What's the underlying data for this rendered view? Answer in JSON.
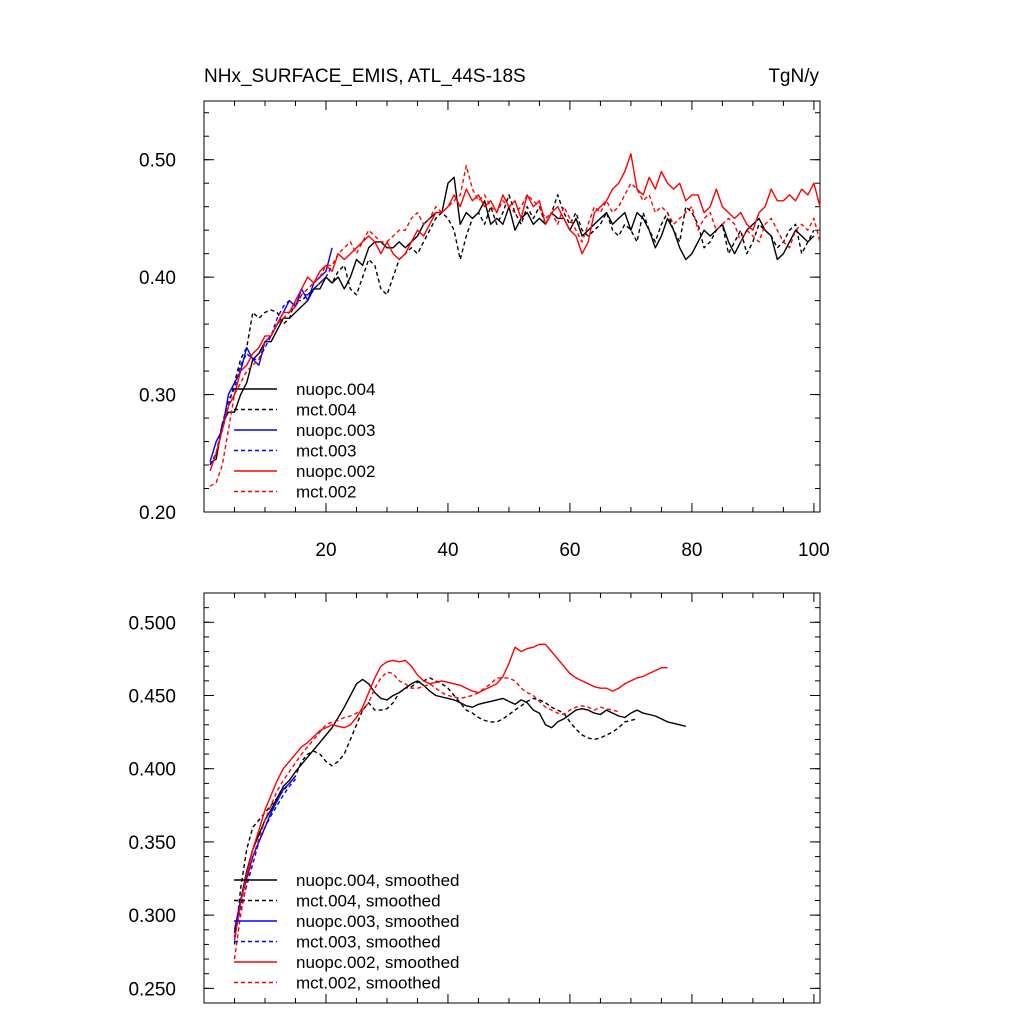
{
  "chart_data": [
    {
      "type": "line",
      "title": "NHx_SURFACE_EMIS, ATL_44S-18S",
      "units": "TgN/y",
      "xlim": [
        0,
        101
      ],
      "ylim": [
        0.2,
        0.55
      ],
      "xticks": [
        20,
        40,
        60,
        80,
        100
      ],
      "xtick_labels": [
        "20",
        "40",
        "60",
        "80",
        "100"
      ],
      "yticks": [
        0.2,
        0.3,
        0.4,
        0.5
      ],
      "ytick_labels": [
        "0.20",
        "0.30",
        "0.40",
        "0.50"
      ],
      "legend_position": "bottom-left",
      "series": [
        {
          "name": "nuopc.004",
          "color": "#000000",
          "dash": "solid",
          "x_start": 1,
          "values": [
            0.242,
            0.245,
            0.275,
            0.285,
            0.285,
            0.3,
            0.31,
            0.33,
            0.335,
            0.345,
            0.345,
            0.355,
            0.365,
            0.365,
            0.37,
            0.375,
            0.38,
            0.39,
            0.39,
            0.4,
            0.395,
            0.4,
            0.39,
            0.4,
            0.415,
            0.41,
            0.425,
            0.43,
            0.43,
            0.425,
            0.425,
            0.43,
            0.425,
            0.43,
            0.435,
            0.445,
            0.45,
            0.455,
            0.455,
            0.48,
            0.485,
            0.445,
            0.455,
            0.45,
            0.455,
            0.465,
            0.445,
            0.45,
            0.445,
            0.46,
            0.44,
            0.45,
            0.455,
            0.445,
            0.45,
            0.445,
            0.455,
            0.45,
            0.45,
            0.44,
            0.45,
            0.435,
            0.44,
            0.445,
            0.45,
            0.455,
            0.445,
            0.45,
            0.455,
            0.44,
            0.455,
            0.45,
            0.44,
            0.425,
            0.435,
            0.45,
            0.44,
            0.425,
            0.415,
            0.42,
            0.43,
            0.44,
            0.435,
            0.44,
            0.445,
            0.43,
            0.42,
            0.43,
            0.44,
            0.445,
            0.45,
            0.44,
            0.435,
            0.415,
            0.42,
            0.43,
            0.44,
            0.435,
            0.43,
            0.435
          ]
        },
        {
          "name": "mct.004",
          "color": "#000000",
          "dash": "dashed",
          "x_start": 1,
          "values": [
            0.24,
            0.25,
            0.27,
            0.29,
            0.31,
            0.33,
            0.34,
            0.37,
            0.365,
            0.37,
            0.372,
            0.37,
            0.36,
            0.365,
            0.38,
            0.38,
            0.385,
            0.39,
            0.395,
            0.4,
            0.395,
            0.405,
            0.41,
            0.39,
            0.385,
            0.4,
            0.415,
            0.41,
            0.39,
            0.385,
            0.4,
            0.415,
            0.42,
            0.425,
            0.42,
            0.43,
            0.44,
            0.45,
            0.455,
            0.45,
            0.44,
            0.415,
            0.435,
            0.45,
            0.455,
            0.445,
            0.46,
            0.445,
            0.455,
            0.47,
            0.455,
            0.445,
            0.46,
            0.45,
            0.46,
            0.445,
            0.455,
            0.47,
            0.455,
            0.445,
            0.455,
            0.44,
            0.435,
            0.44,
            0.445,
            0.455,
            0.44,
            0.435,
            0.445,
            0.44,
            0.43,
            0.455,
            0.44,
            0.43,
            0.445,
            0.455,
            0.44,
            0.43,
            0.46,
            0.455,
            0.445,
            0.425,
            0.43,
            0.44,
            0.445,
            0.42,
            0.43,
            0.44,
            0.42,
            0.43,
            0.445,
            0.44,
            0.435,
            0.425,
            0.43,
            0.44,
            0.445,
            0.42,
            0.43,
            0.44
          ]
        },
        {
          "name": "nuopc.003",
          "color": "#0000ff",
          "dash": "solid",
          "x_start": 1,
          "values": [
            0.243,
            0.26,
            0.27,
            0.3,
            0.31,
            0.32,
            0.34,
            0.33,
            0.325,
            0.345,
            0.35,
            0.36,
            0.37,
            0.38,
            0.375,
            0.39,
            0.38,
            0.395,
            0.4,
            0.405,
            0.425
          ]
        },
        {
          "name": "mct.003",
          "color": "#0000ff",
          "dash": "dashed",
          "x_start": 1,
          "values": [
            0.24,
            0.25,
            0.275,
            0.295,
            0.305,
            0.325,
            0.335,
            0.33,
            0.33,
            0.34,
            0.35,
            0.365,
            0.375,
            0.38,
            0.375,
            0.385,
            0.385,
            0.39,
            0.395,
            0.4,
            0.41
          ]
        },
        {
          "name": "nuopc.002",
          "color": "#ff0000",
          "dash": "solid",
          "x_start": 1,
          "values": [
            0.235,
            0.25,
            0.27,
            0.29,
            0.3,
            0.32,
            0.325,
            0.335,
            0.34,
            0.35,
            0.35,
            0.36,
            0.37,
            0.37,
            0.38,
            0.39,
            0.4,
            0.395,
            0.405,
            0.41,
            0.405,
            0.42,
            0.415,
            0.42,
            0.425,
            0.43,
            0.435,
            0.43,
            0.42,
            0.43,
            0.42,
            0.415,
            0.42,
            0.43,
            0.44,
            0.435,
            0.445,
            0.455,
            0.455,
            0.46,
            0.47,
            0.46,
            0.475,
            0.465,
            0.47,
            0.46,
            0.465,
            0.455,
            0.47,
            0.46,
            0.465,
            0.45,
            0.47,
            0.46,
            0.465,
            0.445,
            0.455,
            0.46,
            0.45,
            0.44,
            0.435,
            0.42,
            0.43,
            0.455,
            0.46,
            0.465,
            0.475,
            0.48,
            0.49,
            0.505,
            0.475,
            0.47,
            0.485,
            0.475,
            0.49,
            0.48,
            0.475,
            0.48,
            0.465,
            0.47,
            0.47,
            0.455,
            0.46,
            0.475,
            0.46,
            0.455,
            0.45,
            0.455,
            0.445,
            0.44,
            0.455,
            0.46,
            0.475,
            0.465,
            0.465,
            0.47,
            0.465,
            0.475,
            0.47,
            0.48,
            0.46
          ]
        },
        {
          "name": "mct.002",
          "color": "#ff0000",
          "dash": "dashed",
          "x_start": 1,
          "values": [
            0.222,
            0.225,
            0.24,
            0.27,
            0.3,
            0.31,
            0.32,
            0.325,
            0.33,
            0.345,
            0.35,
            0.36,
            0.365,
            0.37,
            0.375,
            0.385,
            0.39,
            0.395,
            0.4,
            0.41,
            0.41,
            0.42,
            0.425,
            0.43,
            0.42,
            0.43,
            0.44,
            0.435,
            0.43,
            0.43,
            0.435,
            0.44,
            0.44,
            0.45,
            0.455,
            0.445,
            0.45,
            0.46,
            0.455,
            0.46,
            0.465,
            0.47,
            0.495,
            0.475,
            0.465,
            0.47,
            0.46,
            0.455,
            0.465,
            0.46,
            0.455,
            0.46,
            0.47,
            0.465,
            0.46,
            0.45,
            0.455,
            0.445,
            0.46,
            0.45,
            0.44,
            0.43,
            0.445,
            0.46,
            0.455,
            0.465,
            0.455,
            0.46,
            0.47,
            0.48,
            0.475,
            0.465,
            0.47,
            0.455,
            0.46,
            0.455,
            0.445,
            0.45,
            0.455,
            0.46,
            0.44,
            0.45,
            0.455,
            0.44,
            0.445,
            0.45,
            0.445,
            0.43,
            0.44,
            0.435,
            0.43,
            0.445,
            0.45,
            0.44,
            0.43,
            0.425,
            0.44,
            0.445,
            0.44,
            0.45,
            0.43
          ]
        }
      ]
    },
    {
      "type": "line",
      "xlim": [
        0,
        101
      ],
      "ylim": [
        0.24,
        0.52
      ],
      "yticks": [
        0.25,
        0.3,
        0.35,
        0.4,
        0.45,
        0.5
      ],
      "ytick_labels": [
        "0.250",
        "0.300",
        "0.350",
        "0.400",
        "0.450",
        "0.500"
      ],
      "xticks": [
        20,
        40,
        60,
        80,
        100
      ],
      "legend_position": "bottom-left",
      "series": [
        {
          "name": "nuopc.004, smoothed",
          "color": "#000000",
          "dash": "solid",
          "x_start": 5,
          "values": [
            0.288,
            0.31,
            0.33,
            0.345,
            0.355,
            0.365,
            0.372,
            0.38,
            0.388,
            0.392,
            0.398,
            0.403,
            0.408,
            0.413,
            0.418,
            0.423,
            0.428,
            0.435,
            0.442,
            0.45,
            0.458,
            0.461,
            0.458,
            0.452,
            0.448,
            0.447,
            0.45,
            0.452,
            0.455,
            0.458,
            0.46,
            0.457,
            0.453,
            0.45,
            0.449,
            0.448,
            0.447,
            0.445,
            0.443,
            0.442,
            0.444,
            0.445,
            0.446,
            0.447,
            0.448,
            0.446,
            0.444,
            0.447,
            0.445,
            0.44,
            0.438,
            0.43,
            0.428,
            0.432,
            0.434,
            0.437,
            0.44,
            0.441,
            0.44,
            0.438,
            0.437,
            0.44,
            0.438,
            0.436,
            0.435,
            0.438,
            0.44,
            0.438,
            0.437,
            0.436,
            0.434,
            0.432,
            0.431,
            0.43,
            0.429
          ]
        },
        {
          "name": "mct.004, smoothed",
          "color": "#000000",
          "dash": "dashed",
          "x_start": 5,
          "values": [
            0.28,
            0.318,
            0.345,
            0.36,
            0.365,
            0.37,
            0.375,
            0.38,
            0.385,
            0.39,
            0.395,
            0.405,
            0.41,
            0.412,
            0.41,
            0.405,
            0.402,
            0.405,
            0.41,
            0.42,
            0.43,
            0.44,
            0.445,
            0.44,
            0.44,
            0.441,
            0.445,
            0.452,
            0.455,
            0.456,
            0.459,
            0.46,
            0.462,
            0.46,
            0.458,
            0.455,
            0.45,
            0.445,
            0.44,
            0.438,
            0.435,
            0.433,
            0.432,
            0.432,
            0.434,
            0.437,
            0.44,
            0.443,
            0.446,
            0.448,
            0.447,
            0.445,
            0.442,
            0.44,
            0.438,
            0.432,
            0.427,
            0.423,
            0.421,
            0.42,
            0.421,
            0.423,
            0.425,
            0.428,
            0.432,
            0.433,
            0.434
          ]
        },
        {
          "name": "nuopc.003, smoothed",
          "color": "#0000ff",
          "dash": "solid",
          "x_start": 5,
          "values": [
            0.29,
            0.31,
            0.325,
            0.34,
            0.35,
            0.36,
            0.37,
            0.378,
            0.386,
            0.39,
            0.395
          ]
        },
        {
          "name": "mct.003, smoothed",
          "color": "#0000ff",
          "dash": "dashed",
          "x_start": 5,
          "values": [
            0.285,
            0.305,
            0.32,
            0.335,
            0.35,
            0.36,
            0.368,
            0.375,
            0.382,
            0.388,
            0.393
          ]
        },
        {
          "name": "nuopc.002, smoothed",
          "color": "#ff0000",
          "dash": "solid",
          "x_start": 5,
          "values": [
            0.283,
            0.308,
            0.328,
            0.345,
            0.358,
            0.372,
            0.382,
            0.392,
            0.4,
            0.405,
            0.41,
            0.415,
            0.418,
            0.422,
            0.426,
            0.428,
            0.43,
            0.429,
            0.428,
            0.43,
            0.435,
            0.442,
            0.452,
            0.462,
            0.47,
            0.473,
            0.474,
            0.473,
            0.474,
            0.47,
            0.464,
            0.46,
            0.458,
            0.459,
            0.46,
            0.459,
            0.458,
            0.457,
            0.455,
            0.453,
            0.452,
            0.454,
            0.456,
            0.458,
            0.463,
            0.472,
            0.483,
            0.48,
            0.482,
            0.483,
            0.485,
            0.485,
            0.48,
            0.475,
            0.47,
            0.465,
            0.462,
            0.46,
            0.458,
            0.456,
            0.455,
            0.455,
            0.453,
            0.455,
            0.458,
            0.46,
            0.462,
            0.463,
            0.465,
            0.467,
            0.469,
            0.469
          ]
        },
        {
          "name": "mct.002, smoothed",
          "color": "#ff0000",
          "dash": "dashed",
          "x_start": 5,
          "values": [
            0.27,
            0.3,
            0.322,
            0.34,
            0.352,
            0.365,
            0.375,
            0.385,
            0.392,
            0.398,
            0.404,
            0.41,
            0.415,
            0.42,
            0.425,
            0.43,
            0.432,
            0.433,
            0.435,
            0.436,
            0.438,
            0.44,
            0.445,
            0.455,
            0.462,
            0.466,
            0.465,
            0.46,
            0.458,
            0.455,
            0.455,
            0.456,
            0.458,
            0.455,
            0.452,
            0.45,
            0.449,
            0.448,
            0.449,
            0.45,
            0.452,
            0.455,
            0.458,
            0.462,
            0.462,
            0.462,
            0.46,
            0.455,
            0.452,
            0.45,
            0.446,
            0.442,
            0.44,
            0.438,
            0.437,
            0.44,
            0.442,
            0.443,
            0.442,
            0.44,
            0.442,
            0.441,
            0.44,
            0.439
          ]
        }
      ]
    }
  ]
}
